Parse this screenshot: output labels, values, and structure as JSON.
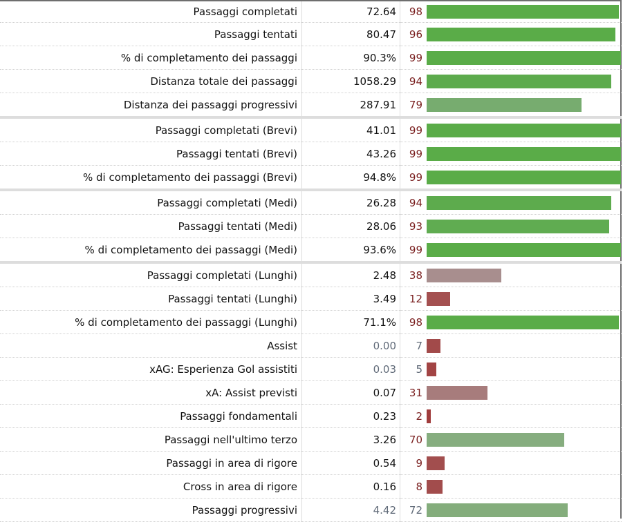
{
  "table": {
    "groups": [
      {
        "rows": [
          {
            "label": "Passaggi completati",
            "value": "72.64",
            "percentile": 98,
            "bar_color": "#5aac48",
            "dim": false
          },
          {
            "label": "Passaggi tentati",
            "value": "80.47",
            "percentile": 96,
            "bar_color": "#5aac48",
            "dim": false
          },
          {
            "label": "% di completamento dei passaggi",
            "value": "90.3%",
            "percentile": 99,
            "bar_color": "#5aac48",
            "dim": false
          },
          {
            "label": "Distanza totale dei passaggi",
            "value": "1058.29",
            "percentile": 94,
            "bar_color": "#5dab4d",
            "dim": false
          },
          {
            "label": "Distanza dei passaggi progressivi",
            "value": "287.91",
            "percentile": 79,
            "bar_color": "#77ac6f",
            "dim": false
          }
        ]
      },
      {
        "rows": [
          {
            "label": "Passaggi completati (Brevi)",
            "value": "41.01",
            "percentile": 99,
            "bar_color": "#5aac48",
            "dim": false
          },
          {
            "label": "Passaggi tentati (Brevi)",
            "value": "43.26",
            "percentile": 99,
            "bar_color": "#5aac48",
            "dim": false
          },
          {
            "label": "% di completamento dei passaggi (Brevi)",
            "value": "94.8%",
            "percentile": 99,
            "bar_color": "#5aac48",
            "dim": false
          }
        ]
      },
      {
        "rows": [
          {
            "label": "Passaggi completati (Medi)",
            "value": "26.28",
            "percentile": 94,
            "bar_color": "#5dab4d",
            "dim": false
          },
          {
            "label": "Passaggi tentati (Medi)",
            "value": "28.06",
            "percentile": 93,
            "bar_color": "#60ac51",
            "dim": false
          },
          {
            "label": "% di completamento dei passaggi (Medi)",
            "value": "93.6%",
            "percentile": 99,
            "bar_color": "#5aac48",
            "dim": false
          }
        ]
      },
      {
        "rows": [
          {
            "label": "Passaggi completati (Lunghi)",
            "value": "2.48",
            "percentile": 38,
            "bar_color": "#a88e8e",
            "dim": false
          },
          {
            "label": "Passaggi tentati (Lunghi)",
            "value": "3.49",
            "percentile": 12,
            "bar_color": "#a45050",
            "dim": false
          },
          {
            "label": "% di completamento dei passaggi (Lunghi)",
            "value": "71.1%",
            "percentile": 98,
            "bar_color": "#5aac48",
            "dim": false
          },
          {
            "label": "Assist",
            "value": "0.00",
            "percentile": 7,
            "bar_color": "#a24a4a",
            "dim": true
          },
          {
            "label": "xAG: Esperienza Gol assistiti",
            "value": "0.03",
            "percentile": 5,
            "bar_color": "#a24444",
            "dim": true
          },
          {
            "label": "xA: Assist previsti",
            "value": "0.07",
            "percentile": 31,
            "bar_color": "#a77c7c",
            "dim": false
          },
          {
            "label": "Passaggi fondamentali",
            "value": "0.23",
            "percentile": 2,
            "bar_color": "#a03c3c",
            "dim": false
          },
          {
            "label": "Passaggi nell'ultimo terzo",
            "value": "3.26",
            "percentile": 70,
            "bar_color": "#86ad7f",
            "dim": false
          },
          {
            "label": "Passaggi in area di rigore",
            "value": "0.54",
            "percentile": 9,
            "bar_color": "#a24e4e",
            "dim": false
          },
          {
            "label": "Cross in area di rigore",
            "value": "0.16",
            "percentile": 8,
            "bar_color": "#a24c4c",
            "dim": false
          },
          {
            "label": "Passaggi progressivi",
            "value": "4.42",
            "percentile": 72,
            "bar_color": "#84ad7c",
            "dim": true
          }
        ]
      }
    ]
  }
}
